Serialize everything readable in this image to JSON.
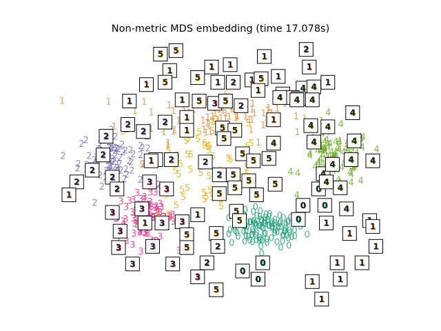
{
  "chart_data": {
    "type": "scatter",
    "title": "Non-metric MDS embedding (time 17.078s)",
    "xlabel": "",
    "ylabel": "",
    "axes_visible": false,
    "grid": false,
    "xlim": [
      -1.0,
      1.0
    ],
    "ylim": [
      -1.0,
      1.0
    ],
    "colors": {
      "0": "#1b9e77",
      "1": "#e08a3c",
      "2": "#7570b3",
      "3": "#e7298a",
      "4": "#66a61e",
      "5": "#e6ab02"
    },
    "clusters": [
      {
        "digit": "0",
        "center": [
          0.28,
          -0.55
        ],
        "spread": [
          0.22,
          0.14
        ],
        "count": 110
      },
      {
        "digit": "1",
        "center": [
          -0.05,
          0.42
        ],
        "spread": [
          0.55,
          0.2
        ],
        "count": 80
      },
      {
        "digit": "2",
        "center": [
          -0.72,
          0.05
        ],
        "spread": [
          0.2,
          0.2
        ],
        "count": 80
      },
      {
        "digit": "3",
        "center": [
          -0.5,
          -0.45
        ],
        "spread": [
          0.17,
          0.2
        ],
        "count": 90
      },
      {
        "digit": "4",
        "center": [
          0.72,
          0.05
        ],
        "spread": [
          0.2,
          0.22
        ],
        "count": 95
      },
      {
        "digit": "5",
        "center": [
          -0.1,
          0.05
        ],
        "spread": [
          0.35,
          0.42
        ],
        "count": 60
      }
    ],
    "thumbnails": [
      {
        "digit": "5",
        "x": -0.41,
        "y": 0.95
      },
      {
        "digit": "5",
        "x": -0.31,
        "y": 0.98
      },
      {
        "digit": "1",
        "x": -0.35,
        "y": 0.81
      },
      {
        "digit": "1",
        "x": -0.08,
        "y": 0.84
      },
      {
        "digit": "1",
        "x": 0.04,
        "y": 0.86
      },
      {
        "digit": "1",
        "x": 0.26,
        "y": 0.93
      },
      {
        "digit": "2",
        "x": 0.53,
        "y": 0.99
      },
      {
        "digit": "1",
        "x": 0.55,
        "y": 0.84
      },
      {
        "digit": "1",
        "x": -0.5,
        "y": 0.69
      },
      {
        "digit": "5",
        "x": -0.38,
        "y": 0.71
      },
      {
        "digit": "5",
        "x": -0.17,
        "y": 0.75
      },
      {
        "digit": "1",
        "x": -0.04,
        "y": 0.71
      },
      {
        "digit": "2",
        "x": 0.06,
        "y": 0.71
      },
      {
        "digit": "1",
        "x": 0.18,
        "y": 0.73
      },
      {
        "digit": "5",
        "x": 0.24,
        "y": 0.74
      },
      {
        "digit": "1",
        "x": 0.35,
        "y": 0.76
      },
      {
        "digit": "1",
        "x": 0.22,
        "y": 0.64
      },
      {
        "digit": "1",
        "x": 0.38,
        "y": 0.61
      },
      {
        "digit": "1",
        "x": 0.67,
        "y": 0.71
      },
      {
        "digit": "4",
        "x": 0.51,
        "y": 0.66
      },
      {
        "digit": "4",
        "x": 0.58,
        "y": 0.67
      },
      {
        "digit": "1",
        "x": -0.61,
        "y": 0.55
      },
      {
        "digit": "1",
        "x": -0.27,
        "y": 0.56
      },
      {
        "digit": "5",
        "x": -0.16,
        "y": 0.55
      },
      {
        "digit": "3",
        "x": -0.06,
        "y": 0.53
      },
      {
        "digit": "5",
        "x": 0.01,
        "y": 0.55
      },
      {
        "digit": "2",
        "x": 0.11,
        "y": 0.51
      },
      {
        "digit": "1",
        "x": 0.44,
        "y": 0.58
      },
      {
        "digit": "1",
        "x": 0.48,
        "y": 0.57
      },
      {
        "digit": "4",
        "x": 0.47,
        "y": 0.56
      },
      {
        "digit": "4",
        "x": 0.36,
        "y": 0.58
      },
      {
        "digit": "4",
        "x": 0.57,
        "y": 0.56
      },
      {
        "digit": "4",
        "x": 0.67,
        "y": 0.33
      },
      {
        "digit": "4",
        "x": 0.83,
        "y": 0.45
      },
      {
        "digit": "2",
        "x": -0.62,
        "y": 0.35
      },
      {
        "digit": "2",
        "x": -0.38,
        "y": 0.37
      },
      {
        "digit": "1",
        "x": -0.24,
        "y": 0.41
      },
      {
        "digit": "5",
        "x": -0.01,
        "y": 0.32
      },
      {
        "digit": "5",
        "x": 0.07,
        "y": 0.3
      },
      {
        "digit": "2",
        "x": -0.76,
        "y": 0.25
      },
      {
        "digit": "2",
        "x": -0.52,
        "y": 0.29
      },
      {
        "digit": "1",
        "x": -0.24,
        "y": 0.3
      },
      {
        "digit": "1",
        "x": 0.32,
        "y": 0.39
      },
      {
        "digit": "4",
        "x": 0.32,
        "y": 0.19
      },
      {
        "digit": "4",
        "x": 0.56,
        "y": 0.34
      },
      {
        "digit": "4",
        "x": 0.84,
        "y": 0.21
      },
      {
        "digit": "4",
        "x": 0.58,
        "y": 0.2
      },
      {
        "digit": "2",
        "x": -0.78,
        "y": 0.09
      },
      {
        "digit": "2",
        "x": -0.44,
        "y": 0.05
      },
      {
        "digit": "2",
        "x": -0.34,
        "y": 0.05
      },
      {
        "digit": "1",
        "x": -0.47,
        "y": 0.04
      },
      {
        "digit": "5",
        "x": 0.0,
        "y": 0.23
      },
      {
        "digit": "5",
        "x": 0.12,
        "y": 0.1
      },
      {
        "digit": "5",
        "x": 0.29,
        "y": 0.06
      },
      {
        "digit": "5",
        "x": 0.19,
        "y": 0.04
      },
      {
        "digit": "2",
        "x": -0.12,
        "y": 0.03
      },
      {
        "digit": "4",
        "x": 0.82,
        "y": 0.05
      },
      {
        "digit": "4",
        "x": 0.96,
        "y": 0.04
      },
      {
        "digit": "4",
        "x": 0.64,
        "y": -0.07
      },
      {
        "digit": "4",
        "x": 0.7,
        "y": 0.01
      },
      {
        "digit": "2",
        "x": -0.85,
        "y": -0.04
      },
      {
        "digit": "2",
        "x": -0.72,
        "y": -0.1
      },
      {
        "digit": "2",
        "x": -0.03,
        "y": -0.08
      },
      {
        "digit": "5",
        "x": 0.06,
        "y": -0.08
      },
      {
        "digit": "5",
        "x": 0.16,
        "y": -0.13
      },
      {
        "digit": "2",
        "x": -0.95,
        "y": -0.14
      },
      {
        "digit": "2",
        "x": -0.69,
        "y": -0.2
      },
      {
        "digit": "5",
        "x": -0.03,
        "y": -0.24
      },
      {
        "digit": "5",
        "x": 0.21,
        "y": -0.25
      },
      {
        "digit": "5",
        "x": 0.07,
        "y": -0.19
      },
      {
        "digit": "1",
        "x": -1.0,
        "y": -0.25
      },
      {
        "digit": "3",
        "x": -0.48,
        "y": -0.14
      },
      {
        "digit": "3",
        "x": -0.37,
        "y": -0.2
      },
      {
        "digit": "5",
        "x": 0.33,
        "y": -0.16
      },
      {
        "digit": "0",
        "x": 0.61,
        "y": -0.2
      },
      {
        "digit": "4",
        "x": 0.66,
        "y": -0.14
      },
      {
        "digit": "4",
        "x": 0.75,
        "y": -0.19
      },
      {
        "digit": "3",
        "x": -0.72,
        "y": -0.4
      },
      {
        "digit": "3",
        "x": -0.53,
        "y": -0.37
      },
      {
        "digit": "1",
        "x": -0.17,
        "y": -0.42
      },
      {
        "digit": "5",
        "x": 0.08,
        "y": -0.39
      },
      {
        "digit": "0",
        "x": 0.51,
        "y": -0.34
      },
      {
        "digit": "0",
        "x": 0.65,
        "y": -0.34
      },
      {
        "digit": "4",
        "x": 0.79,
        "y": -0.37
      },
      {
        "digit": "1",
        "x": -0.51,
        "y": -0.49
      },
      {
        "digit": "3",
        "x": -0.4,
        "y": -0.49
      },
      {
        "digit": "3",
        "x": -0.27,
        "y": -0.48
      },
      {
        "digit": "5",
        "x": 0.1,
        "y": -0.47
      },
      {
        "digit": "0",
        "x": 0.48,
        "y": -0.46
      },
      {
        "digit": "1",
        "x": 0.66,
        "y": -0.49
      },
      {
        "digit": "1",
        "x": 0.94,
        "y": -0.47
      },
      {
        "digit": "1",
        "x": 0.96,
        "y": -0.52
      },
      {
        "digit": "3",
        "x": -0.67,
        "y": -0.56
      },
      {
        "digit": "5",
        "x": -0.24,
        "y": -0.59
      },
      {
        "digit": "5",
        "x": -0.05,
        "y": -0.58
      },
      {
        "digit": "1",
        "x": 0.81,
        "y": -0.58
      },
      {
        "digit": "3",
        "x": -0.68,
        "y": -0.7
      },
      {
        "digit": "3",
        "x": -0.46,
        "y": -0.69
      },
      {
        "digit": "5",
        "x": -0.24,
        "y": -0.7
      },
      {
        "digit": "2",
        "x": -0.04,
        "y": -0.69
      },
      {
        "digit": "1",
        "x": 0.98,
        "y": -0.69
      },
      {
        "digit": "3",
        "x": -0.59,
        "y": -0.84
      },
      {
        "digit": "3",
        "x": -0.33,
        "y": -0.84
      },
      {
        "digit": "2",
        "x": -0.11,
        "y": -0.83
      },
      {
        "digit": "0",
        "x": 0.25,
        "y": -0.83
      },
      {
        "digit": "1",
        "x": 0.73,
        "y": -0.83
      },
      {
        "digit": "1",
        "x": 0.89,
        "y": -0.83
      },
      {
        "digit": "3",
        "x": -0.17,
        "y": -0.95
      },
      {
        "digit": "0",
        "x": 0.12,
        "y": -0.9
      },
      {
        "digit": "0",
        "x": 0.22,
        "y": -0.97
      },
      {
        "digit": "1",
        "x": 0.57,
        "y": -0.99
      },
      {
        "digit": "1",
        "x": 0.75,
        "y": -0.97
      },
      {
        "digit": "5",
        "x": -0.05,
        "y": -1.06
      },
      {
        "digit": "1",
        "x": 0.63,
        "y": -1.14
      }
    ]
  }
}
